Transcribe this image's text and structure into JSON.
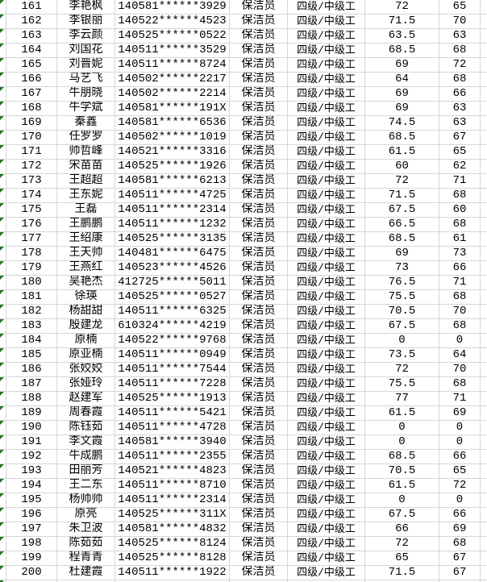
{
  "colors": {
    "gridline": "#d6d6d6",
    "error_indicator_green": "#1e7a1e",
    "text": "#000000",
    "background": "#ffffff"
  },
  "table": {
    "visible_row_range": "161-200",
    "rows": [
      {
        "no": "161",
        "name": "李艳枫",
        "id": "140581******3929",
        "job": "保洁员",
        "level": "四级/中级工",
        "score1": "72",
        "score2": "65"
      },
      {
        "no": "162",
        "name": "李银丽",
        "id": "140522******4523",
        "job": "保洁员",
        "level": "四级/中级工",
        "score1": "71.5",
        "score2": "70"
      },
      {
        "no": "163",
        "name": "李云颜",
        "id": "140525******0522",
        "job": "保洁员",
        "level": "四级/中级工",
        "score1": "63.5",
        "score2": "63"
      },
      {
        "no": "164",
        "name": "刘国花",
        "id": "140511******3529",
        "job": "保洁员",
        "level": "四级/中级工",
        "score1": "68.5",
        "score2": "68"
      },
      {
        "no": "165",
        "name": "刘晋妮",
        "id": "140511******8724",
        "job": "保洁员",
        "level": "四级/中级工",
        "score1": "69",
        "score2": "72"
      },
      {
        "no": "166",
        "name": "马艺飞",
        "id": "140502******2217",
        "job": "保洁员",
        "level": "四级/中级工",
        "score1": "64",
        "score2": "68"
      },
      {
        "no": "167",
        "name": "牛朋晓",
        "id": "140502******2214",
        "job": "保洁员",
        "level": "四级/中级工",
        "score1": "69",
        "score2": "66"
      },
      {
        "no": "168",
        "name": "牛学斌",
        "id": "140581******191X",
        "job": "保洁员",
        "level": "四级/中级工",
        "score1": "69",
        "score2": "63"
      },
      {
        "no": "169",
        "name": "秦鑫",
        "id": "140581******6536",
        "job": "保洁员",
        "level": "四级/中级工",
        "score1": "74.5",
        "score2": "63"
      },
      {
        "no": "170",
        "name": "任罗罗",
        "id": "140502******1019",
        "job": "保洁员",
        "level": "四级/中级工",
        "score1": "68.5",
        "score2": "67"
      },
      {
        "no": "171",
        "name": "帅哲峰",
        "id": "140521******3316",
        "job": "保洁员",
        "level": "四级/中级工",
        "score1": "61.5",
        "score2": "65"
      },
      {
        "no": "172",
        "name": "宋苗苗",
        "id": "140525******1926",
        "job": "保洁员",
        "level": "四级/中级工",
        "score1": "60",
        "score2": "62"
      },
      {
        "no": "173",
        "name": "王超超",
        "id": "140581******6213",
        "job": "保洁员",
        "level": "四级/中级工",
        "score1": "72",
        "score2": "71"
      },
      {
        "no": "174",
        "name": "王东妮",
        "id": "140511******4725",
        "job": "保洁员",
        "level": "四级/中级工",
        "score1": "71.5",
        "score2": "68"
      },
      {
        "no": "175",
        "name": "王磊",
        "id": "140511******2314",
        "job": "保洁员",
        "level": "四级/中级工",
        "score1": "67.5",
        "score2": "60"
      },
      {
        "no": "176",
        "name": "王鹏鹏",
        "id": "140511******1232",
        "job": "保洁员",
        "level": "四级/中级工",
        "score1": "66.5",
        "score2": "68"
      },
      {
        "no": "177",
        "name": "王绍康",
        "id": "140525******3135",
        "job": "保洁员",
        "level": "四级/中级工",
        "score1": "68.5",
        "score2": "61"
      },
      {
        "no": "178",
        "name": "王天帅",
        "id": "140481******6475",
        "job": "保洁员",
        "level": "四级/中级工",
        "score1": "69",
        "score2": "73"
      },
      {
        "no": "179",
        "name": "王燕红",
        "id": "140523******4526",
        "job": "保洁员",
        "level": "四级/中级工",
        "score1": "73",
        "score2": "66"
      },
      {
        "no": "180",
        "name": "吴艳杰",
        "id": "412725******5011",
        "job": "保洁员",
        "level": "四级/中级工",
        "score1": "76.5",
        "score2": "71"
      },
      {
        "no": "181",
        "name": "徐瑛",
        "id": "140525******0527",
        "job": "保洁员",
        "level": "四级/中级工",
        "score1": "75.5",
        "score2": "68"
      },
      {
        "no": "182",
        "name": "杨甜甜",
        "id": "140511******6325",
        "job": "保洁员",
        "level": "四级/中级工",
        "score1": "70.5",
        "score2": "70"
      },
      {
        "no": "183",
        "name": "殷建龙",
        "id": "610324******4219",
        "job": "保洁员",
        "level": "四级/中级工",
        "score1": "67.5",
        "score2": "68"
      },
      {
        "no": "184",
        "name": "原楠",
        "id": "140522******9768",
        "job": "保洁员",
        "level": "四级/中级工",
        "score1": "0",
        "score2": "0"
      },
      {
        "no": "185",
        "name": "原亚楠",
        "id": "140511******0949",
        "job": "保洁员",
        "level": "四级/中级工",
        "score1": "73.5",
        "score2": "64"
      },
      {
        "no": "186",
        "name": "张姣姣",
        "id": "140511******7544",
        "job": "保洁员",
        "level": "四级/中级工",
        "score1": "72",
        "score2": "70"
      },
      {
        "no": "187",
        "name": "张娅玲",
        "id": "140511******7228",
        "job": "保洁员",
        "level": "四级/中级工",
        "score1": "75.5",
        "score2": "68"
      },
      {
        "no": "188",
        "name": "赵建军",
        "id": "140525******1913",
        "job": "保洁员",
        "level": "四级/中级工",
        "score1": "77",
        "score2": "71"
      },
      {
        "no": "189",
        "name": "周春霞",
        "id": "140511******5421",
        "job": "保洁员",
        "level": "四级/中级工",
        "score1": "61.5",
        "score2": "69"
      },
      {
        "no": "190",
        "name": "陈钰茹",
        "id": "140511******4728",
        "job": "保洁员",
        "level": "四级/中级工",
        "score1": "0",
        "score2": "0"
      },
      {
        "no": "191",
        "name": "李文霞",
        "id": "140581******3940",
        "job": "保洁员",
        "level": "四级/中级工",
        "score1": "0",
        "score2": "0"
      },
      {
        "no": "192",
        "name": "牛成鹏",
        "id": "140511******2355",
        "job": "保洁员",
        "level": "四级/中级工",
        "score1": "68.5",
        "score2": "66"
      },
      {
        "no": "193",
        "name": "田丽芳",
        "id": "140521******4823",
        "job": "保洁员",
        "level": "四级/中级工",
        "score1": "70.5",
        "score2": "65"
      },
      {
        "no": "194",
        "name": "王二东",
        "id": "140511******8710",
        "job": "保洁员",
        "level": "四级/中级工",
        "score1": "61.5",
        "score2": "72"
      },
      {
        "no": "195",
        "name": "杨帅帅",
        "id": "140511******2314",
        "job": "保洁员",
        "level": "四级/中级工",
        "score1": "0",
        "score2": "0"
      },
      {
        "no": "196",
        "name": "原亮",
        "id": "140525******311X",
        "job": "保洁员",
        "level": "四级/中级工",
        "score1": "67.5",
        "score2": "66"
      },
      {
        "no": "197",
        "name": "朱卫波",
        "id": "140581******4832",
        "job": "保洁员",
        "level": "四级/中级工",
        "score1": "66",
        "score2": "69"
      },
      {
        "no": "198",
        "name": "陈茹茹",
        "id": "140525******8124",
        "job": "保洁员",
        "level": "四级/中级工",
        "score1": "72",
        "score2": "68"
      },
      {
        "no": "199",
        "name": "程青青",
        "id": "140525******8128",
        "job": "保洁员",
        "level": "四级/中级工",
        "score1": "65",
        "score2": "67"
      },
      {
        "no": "200",
        "name": "杜建霞",
        "id": "140511******1922",
        "job": "保洁员",
        "level": "四级/中级工",
        "score1": "71.5",
        "score2": "67"
      }
    ]
  }
}
